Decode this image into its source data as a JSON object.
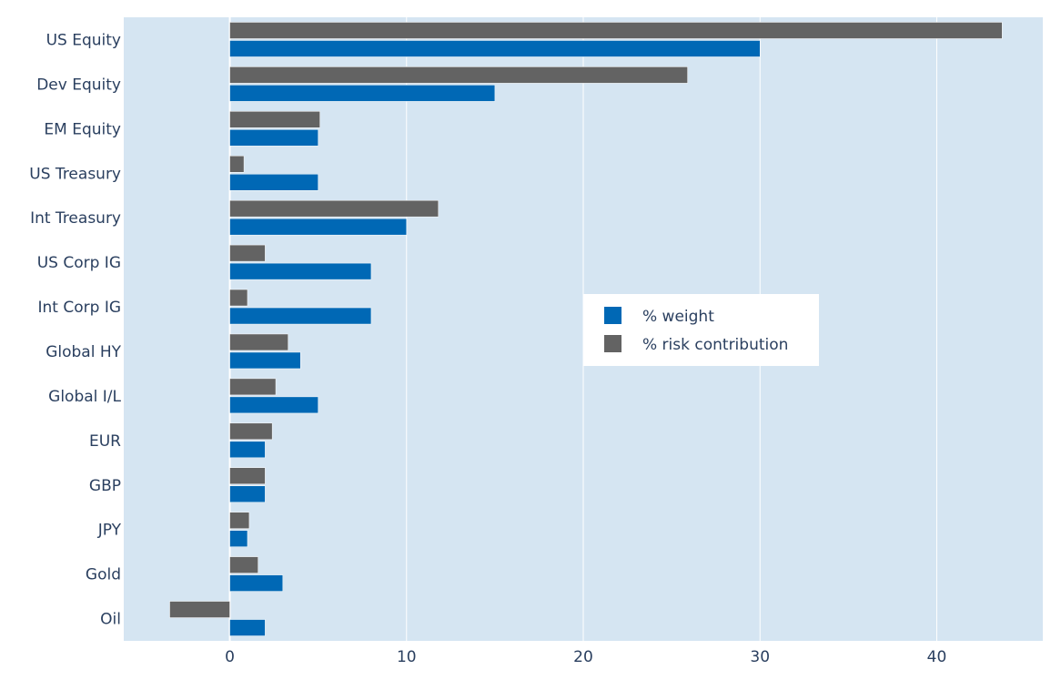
{
  "chart_data": {
    "type": "bar",
    "orientation": "horizontal",
    "title": "",
    "xlabel": "",
    "ylabel": "",
    "categories": [
      "US Equity",
      "Dev Equity",
      "EM Equity",
      "US Treasury",
      "Int Treasury",
      "US Corp IG",
      "Int Corp IG",
      "Global HY",
      "Global I/L",
      "EUR",
      "GBP",
      "JPY",
      "Gold",
      "Oil"
    ],
    "series": [
      {
        "name": "% weight",
        "color": "#0068b5",
        "values": [
          30,
          15,
          5,
          5,
          10,
          8,
          8,
          4,
          5,
          2,
          2,
          1,
          3,
          2
        ]
      },
      {
        "name": "% risk contribution",
        "color": "#636363",
        "values": [
          43.7,
          25.9,
          5.1,
          0.8,
          11.8,
          2.0,
          1.0,
          3.3,
          2.6,
          2.4,
          2.0,
          1.1,
          1.6,
          -3.4
        ]
      }
    ],
    "xlim": [
      -6,
      46
    ],
    "xticks": [
      0,
      10,
      20,
      30,
      40
    ],
    "grid": true,
    "legend_position": "center-right",
    "plot_background": "#d5e5f2"
  }
}
